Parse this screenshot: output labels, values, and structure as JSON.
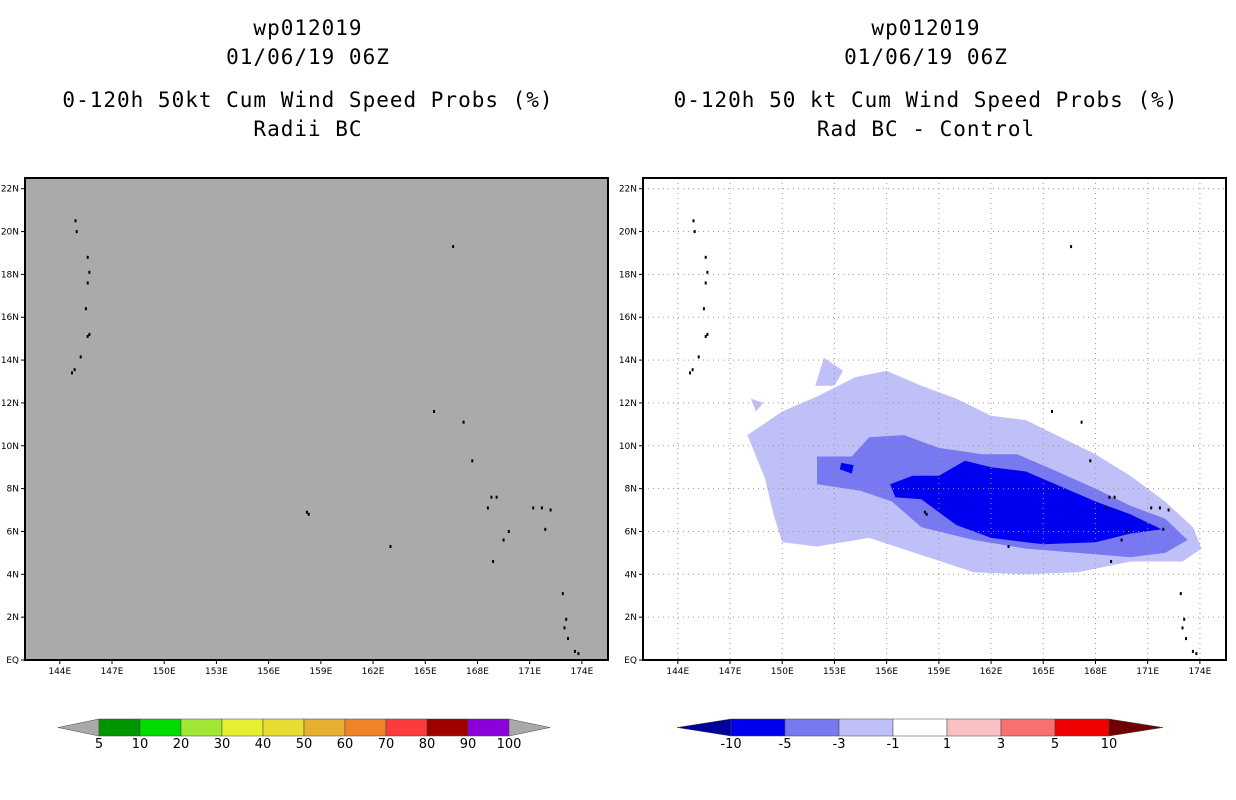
{
  "panels": [
    {
      "id": "left",
      "title_lines": [
        "wp012019",
        "01/06/19 06Z",
        "0-120h 50kt Cum Wind Speed Probs (%)",
        "Radii BC"
      ]
    },
    {
      "id": "right",
      "title_lines": [
        "wp012019",
        "01/06/19 06Z",
        "0-120h 50 kt Cum Wind Speed Probs (%)",
        "Rad BC - Control"
      ]
    }
  ],
  "chart_data": [
    {
      "type": "heatmap",
      "title": "0-120h 50kt Cum Wind Speed Probs (%) — Radii BC",
      "xlim": [
        142,
        175.5
      ],
      "ylim": [
        0,
        22.5
      ],
      "x_ticks": [
        "144E",
        "147E",
        "150E",
        "153E",
        "156E",
        "159E",
        "162E",
        "165E",
        "168E",
        "171E",
        "174E"
      ],
      "x_tick_values": [
        144,
        147,
        150,
        153,
        156,
        159,
        162,
        165,
        168,
        171,
        174
      ],
      "y_ticks": [
        "EQ",
        "2N",
        "4N",
        "6N",
        "8N",
        "10N",
        "12N",
        "14N",
        "16N",
        "18N",
        "20N",
        "22N"
      ],
      "y_tick_values": [
        0,
        2,
        4,
        6,
        8,
        10,
        12,
        14,
        16,
        18,
        20,
        22
      ],
      "grid": false,
      "field": "all values below 5% (uniform gray, no probability contours)",
      "colorbar": {
        "labels": [
          "5",
          "10",
          "20",
          "30",
          "40",
          "50",
          "60",
          "70",
          "80",
          "90",
          "100"
        ],
        "colors": [
          "#009600",
          "#00dc00",
          "#a0e632",
          "#e6f032",
          "#e6dc32",
          "#e6af2d",
          "#f08228",
          "#fa3c3c",
          "#a00000",
          "#8c00dc",
          "#a9a9a9"
        ]
      }
    },
    {
      "type": "heatmap",
      "title": "0-120h 50 kt Cum Wind Speed Probs (%) — Rad BC - Control",
      "xlim": [
        142,
        175.5
      ],
      "ylim": [
        0,
        22.5
      ],
      "x_ticks": [
        "144E",
        "147E",
        "150E",
        "153E",
        "156E",
        "159E",
        "162E",
        "165E",
        "168E",
        "171E",
        "174E"
      ],
      "x_tick_values": [
        144,
        147,
        150,
        153,
        156,
        159,
        162,
        165,
        168,
        171,
        174
      ],
      "y_ticks": [
        "EQ",
        "2N",
        "4N",
        "6N",
        "8N",
        "10N",
        "12N",
        "14N",
        "16N",
        "18N",
        "20N",
        "22N"
      ],
      "y_tick_values": [
        0,
        2,
        4,
        6,
        8,
        10,
        12,
        14,
        16,
        18,
        20,
        22
      ],
      "grid": true,
      "contours": [
        {
          "level": "-3 to -1",
          "color": "#c0c0f8",
          "polygon_lonlat": [
            [
              148,
              10.5
            ],
            [
              150,
              11.6
            ],
            [
              152,
              12.3
            ],
            [
              154.2,
              13.2
            ],
            [
              156,
              13.5
            ],
            [
              158,
              12.8
            ],
            [
              160,
              12.2
            ],
            [
              162,
              11.4
            ],
            [
              164,
              11.2
            ],
            [
              166,
              10.4
            ],
            [
              168,
              9.6
            ],
            [
              170,
              8.6
            ],
            [
              172,
              7.4
            ],
            [
              173.6,
              6.2
            ],
            [
              174.1,
              5.2
            ],
            [
              173,
              4.6
            ],
            [
              170,
              4.6
            ],
            [
              167,
              4.1
            ],
            [
              164,
              4.0
            ],
            [
              161,
              4.1
            ],
            [
              158,
              4.9
            ],
            [
              155,
              5.7
            ],
            [
              152,
              5.3
            ],
            [
              150,
              5.5
            ],
            [
              149.5,
              6.8
            ],
            [
              149,
              8.5
            ]
          ]
        },
        {
          "level": "-3 to -1",
          "color": "#c0c0f8",
          "polygon_lonlat": [
            [
              151.9,
              12.8
            ],
            [
              152.4,
              14.1
            ],
            [
              153.5,
              13.5
            ],
            [
              153,
              12.8
            ]
          ]
        },
        {
          "level": "-3 to -1",
          "color": "#c0c0f8",
          "polygon_lonlat": [
            [
              148.2,
              12.2
            ],
            [
              148.9,
              12.0
            ],
            [
              148.5,
              11.6
            ]
          ]
        },
        {
          "level": "-5 to -3",
          "color": "#7878f0",
          "polygon_lonlat": [
            [
              152,
              9.5
            ],
            [
              154,
              9.5
            ],
            [
              155,
              10.4
            ],
            [
              157,
              10.5
            ],
            [
              159,
              9.9
            ],
            [
              161.5,
              9.6
            ],
            [
              163.5,
              9.6
            ],
            [
              165.5,
              8.9
            ],
            [
              168,
              8.0
            ],
            [
              170,
              7.2
            ],
            [
              172,
              6.6
            ],
            [
              173.3,
              5.6
            ],
            [
              172,
              5.0
            ],
            [
              170,
              4.8
            ],
            [
              167,
              5.0
            ],
            [
              164,
              5.2
            ],
            [
              161,
              5.6
            ],
            [
              158,
              6.2
            ],
            [
              156.3,
              7.4
            ],
            [
              154.5,
              7.9
            ],
            [
              152,
              8.2
            ]
          ]
        },
        {
          "level": "-10 to -5",
          "color": "#0000f0",
          "polygon_lonlat": [
            [
              156.2,
              8.2
            ],
            [
              157.5,
              8.6
            ],
            [
              159,
              8.6
            ],
            [
              160.5,
              9.3
            ],
            [
              162,
              9.0
            ],
            [
              164,
              8.8
            ],
            [
              166,
              8.1
            ],
            [
              168,
              7.4
            ],
            [
              170,
              6.8
            ],
            [
              171.8,
              6.1
            ],
            [
              170,
              5.9
            ],
            [
              168,
              5.5
            ],
            [
              165,
              5.4
            ],
            [
              162,
              5.7
            ],
            [
              160,
              6.3
            ],
            [
              158,
              7.5
            ],
            [
              156.5,
              7.6
            ]
          ]
        },
        {
          "level": "-10 to -5",
          "color": "#0000f0",
          "polygon_lonlat": [
            [
              153.4,
              9.2
            ],
            [
              154.1,
              9.1
            ],
            [
              154,
              8.7
            ],
            [
              153.3,
              8.9
            ]
          ]
        }
      ],
      "colorbar": {
        "labels": [
          "-10",
          "-5",
          "-3",
          "-1",
          "1",
          "3",
          "5",
          "10"
        ],
        "colors": [
          "#00009a",
          "#0000f0",
          "#7878f0",
          "#c0c0f8",
          "#ffffff",
          "#f8c0c0",
          "#f87070",
          "#f00000",
          "#700000"
        ]
      }
    }
  ]
}
